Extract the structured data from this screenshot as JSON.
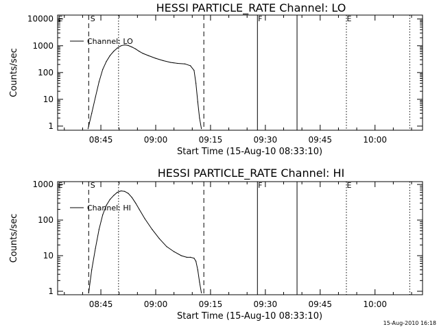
{
  "chart_data": [
    {
      "type": "line",
      "title": "HESSI PARTICLE_RATE Channel: LO",
      "xlabel": "Start Time (15-Aug-10 08:33:10)",
      "ylabel": "Counts/sec",
      "yscale": "log",
      "xlim": [
        "08:33:10",
        "10:13:00"
      ],
      "ylim": [
        0.7,
        14000
      ],
      "x_ticks": [
        "08:45",
        "09:00",
        "09:15",
        "09:30",
        "09:45",
        "10:00"
      ],
      "y_ticks": [
        "1",
        "10",
        "100",
        "1000",
        "10000"
      ],
      "legend_position": "top-left",
      "series": [
        {
          "name": "Channel: LO",
          "x": [
            "08:41:30",
            "08:42:30",
            "08:43:30",
            "08:44:30",
            "08:45:30",
            "08:46:30",
            "08:47:30",
            "08:48:30",
            "08:49:30",
            "08:50:30",
            "08:51:30",
            "08:52:30",
            "08:53:30",
            "08:54:30",
            "08:55:30",
            "08:56:30",
            "08:58:00",
            "09:00:00",
            "09:02:00",
            "09:04:00",
            "09:06:00",
            "09:08:00",
            "09:09:30",
            "09:10:30",
            "09:11:00",
            "09:11:30",
            "09:12:00",
            "09:12:30"
          ],
          "y": [
            0.8,
            3,
            12,
            45,
            130,
            260,
            430,
            620,
            820,
            1000,
            1080,
            1020,
            900,
            760,
            620,
            520,
            430,
            340,
            280,
            240,
            220,
            210,
            180,
            120,
            40,
            8,
            2,
            0.8
          ]
        }
      ],
      "markers": {
        "labels": [
          "E",
          "S",
          "F",
          "E"
        ],
        "dashed_x": [
          "08:41:40",
          "09:13:10"
        ],
        "dotted_x": [
          "08:49:50",
          "09:52:10",
          "10:09:30"
        ],
        "solid_x": [
          "09:27:50",
          "09:38:40"
        ]
      }
    },
    {
      "type": "line",
      "title": "HESSI PARTICLE_RATE Channel: HI",
      "xlabel": "Start Time (15-Aug-10 08:33:10)",
      "ylabel": "Counts/sec",
      "yscale": "log",
      "xlim": [
        "08:33:10",
        "10:13:00"
      ],
      "ylim": [
        0.8,
        1200
      ],
      "x_ticks": [
        "08:45",
        "09:00",
        "09:15",
        "09:30",
        "09:45",
        "10:00"
      ],
      "y_ticks": [
        "1",
        "10",
        "100",
        "1000"
      ],
      "legend_position": "top-left",
      "series": [
        {
          "name": "Channel: HI",
          "x": [
            "08:41:40",
            "08:42:30",
            "08:43:30",
            "08:44:30",
            "08:45:30",
            "08:46:30",
            "08:47:30",
            "08:48:30",
            "08:49:30",
            "08:50:30",
            "08:51:30",
            "08:52:30",
            "08:53:30",
            "08:54:30",
            "08:55:30",
            "08:57:00",
            "08:59:00",
            "09:01:00",
            "09:03:00",
            "09:05:00",
            "09:07:00",
            "09:08:30",
            "09:09:30",
            "09:10:30",
            "09:11:00",
            "09:11:30",
            "09:12:00",
            "09:12:30"
          ],
          "y": [
            0.9,
            4,
            16,
            55,
            140,
            260,
            380,
            490,
            600,
            660,
            640,
            560,
            430,
            300,
            200,
            110,
            55,
            30,
            18,
            13,
            10,
            9,
            9,
            8.5,
            7,
            4,
            1.8,
            0.9
          ]
        }
      ],
      "markers": {
        "labels": [
          "E",
          "S",
          "F",
          "E"
        ],
        "dashed_x": [
          "08:41:40",
          "09:13:10"
        ],
        "dotted_x": [
          "08:49:50",
          "09:52:10",
          "10:09:30"
        ],
        "solid_x": [
          "09:27:50",
          "09:38:40"
        ]
      }
    }
  ],
  "timestamp": "15-Aug-2010 16:18"
}
